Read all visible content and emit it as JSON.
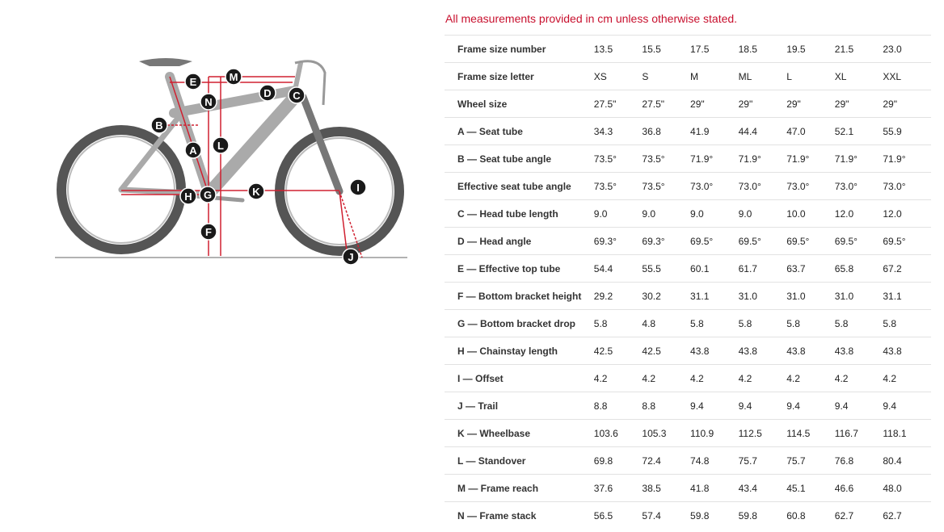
{
  "note": "All measurements provided in cm unless otherwise stated.",
  "diagram": {
    "labels": [
      "E",
      "M",
      "D",
      "C",
      "N",
      "B",
      "L",
      "A",
      "K",
      "I",
      "H",
      "G",
      "F",
      "J"
    ]
  },
  "table": {
    "rows": [
      [
        "Frame size number",
        "13.5",
        "15.5",
        "17.5",
        "18.5",
        "19.5",
        "21.5",
        "23.0"
      ],
      [
        "Frame size letter",
        "XS",
        "S",
        "M",
        "ML",
        "L",
        "XL",
        "XXL"
      ],
      [
        "Wheel size",
        "27.5\"",
        "27.5\"",
        "29\"",
        "29\"",
        "29\"",
        "29\"",
        "29\""
      ],
      [
        "A — Seat tube",
        "34.3",
        "36.8",
        "41.9",
        "44.4",
        "47.0",
        "52.1",
        "55.9"
      ],
      [
        "B — Seat tube angle",
        "73.5°",
        "73.5°",
        "71.9°",
        "71.9°",
        "71.9°",
        "71.9°",
        "71.9°"
      ],
      [
        "Effective seat tube angle",
        "73.5°",
        "73.5°",
        "73.0°",
        "73.0°",
        "73.0°",
        "73.0°",
        "73.0°"
      ],
      [
        "C — Head tube length",
        "9.0",
        "9.0",
        "9.0",
        "9.0",
        "10.0",
        "12.0",
        "12.0"
      ],
      [
        "D — Head angle",
        "69.3°",
        "69.3°",
        "69.5°",
        "69.5°",
        "69.5°",
        "69.5°",
        "69.5°"
      ],
      [
        "E — Effective top tube",
        "54.4",
        "55.5",
        "60.1",
        "61.7",
        "63.7",
        "65.8",
        "67.2"
      ],
      [
        "F — Bottom bracket height",
        "29.2",
        "30.2",
        "31.1",
        "31.0",
        "31.0",
        "31.0",
        "31.1"
      ],
      [
        "G — Bottom bracket drop",
        "5.8",
        "4.8",
        "5.8",
        "5.8",
        "5.8",
        "5.8",
        "5.8"
      ],
      [
        "H — Chainstay length",
        "42.5",
        "42.5",
        "43.8",
        "43.8",
        "43.8",
        "43.8",
        "43.8"
      ],
      [
        "I — Offset",
        "4.2",
        "4.2",
        "4.2",
        "4.2",
        "4.2",
        "4.2",
        "4.2"
      ],
      [
        "J — Trail",
        "8.8",
        "8.8",
        "9.4",
        "9.4",
        "9.4",
        "9.4",
        "9.4"
      ],
      [
        "K — Wheelbase",
        "103.6",
        "105.3",
        "110.9",
        "112.5",
        "114.5",
        "116.7",
        "118.1"
      ],
      [
        "L — Standover",
        "69.8",
        "72.4",
        "74.8",
        "75.7",
        "75.7",
        "76.8",
        "80.4"
      ],
      [
        "M — Frame reach",
        "37.6",
        "38.5",
        "41.8",
        "43.4",
        "45.1",
        "46.6",
        "48.0"
      ],
      [
        "N — Frame stack",
        "56.5",
        "57.4",
        "59.8",
        "59.8",
        "60.8",
        "62.7",
        "62.7"
      ]
    ]
  }
}
